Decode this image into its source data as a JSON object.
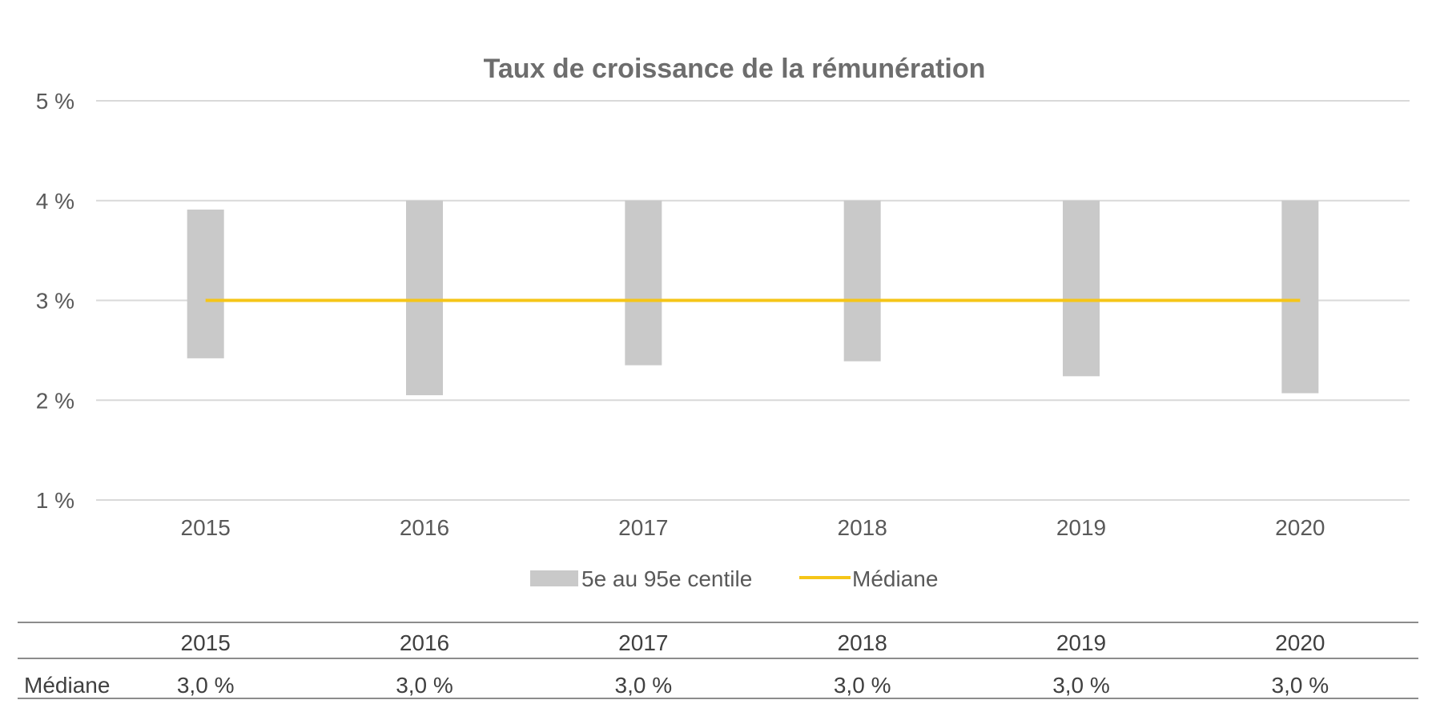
{
  "chart_data": {
    "type": "bar",
    "title": "Taux de croissance de la rémunération",
    "xlabel": "",
    "ylabel": "",
    "categories": [
      "2015",
      "2016",
      "2017",
      "2018",
      "2019",
      "2020"
    ],
    "ylim": [
      1,
      5
    ],
    "yticks": [
      1,
      2,
      3,
      4,
      5
    ],
    "ytick_labels": [
      "1 %",
      "2 %",
      "3 %",
      "4 %",
      "5 %"
    ],
    "grid": true,
    "legend_position": "bottom",
    "series": [
      {
        "name": "5e au 95e centile",
        "kind": "floating-bar",
        "low": [
          2.42,
          2.05,
          2.35,
          2.39,
          2.24,
          2.07
        ],
        "high": [
          3.91,
          4.0,
          4.0,
          4.0,
          4.0,
          4.0
        ],
        "color": "#c9c9c9"
      },
      {
        "name": "Médiane",
        "kind": "line",
        "values": [
          3.0,
          3.0,
          3.0,
          3.0,
          3.0,
          3.0
        ],
        "color": "#f5c518"
      }
    ]
  },
  "table": {
    "columns": [
      "2015",
      "2016",
      "2017",
      "2018",
      "2019",
      "2020"
    ],
    "rows": [
      {
        "label": "Médiane",
        "cells": [
          "3,0 %",
          "3,0 %",
          "3,0 %",
          "3,0 %",
          "3,0 %",
          "3,0 %"
        ]
      }
    ]
  }
}
